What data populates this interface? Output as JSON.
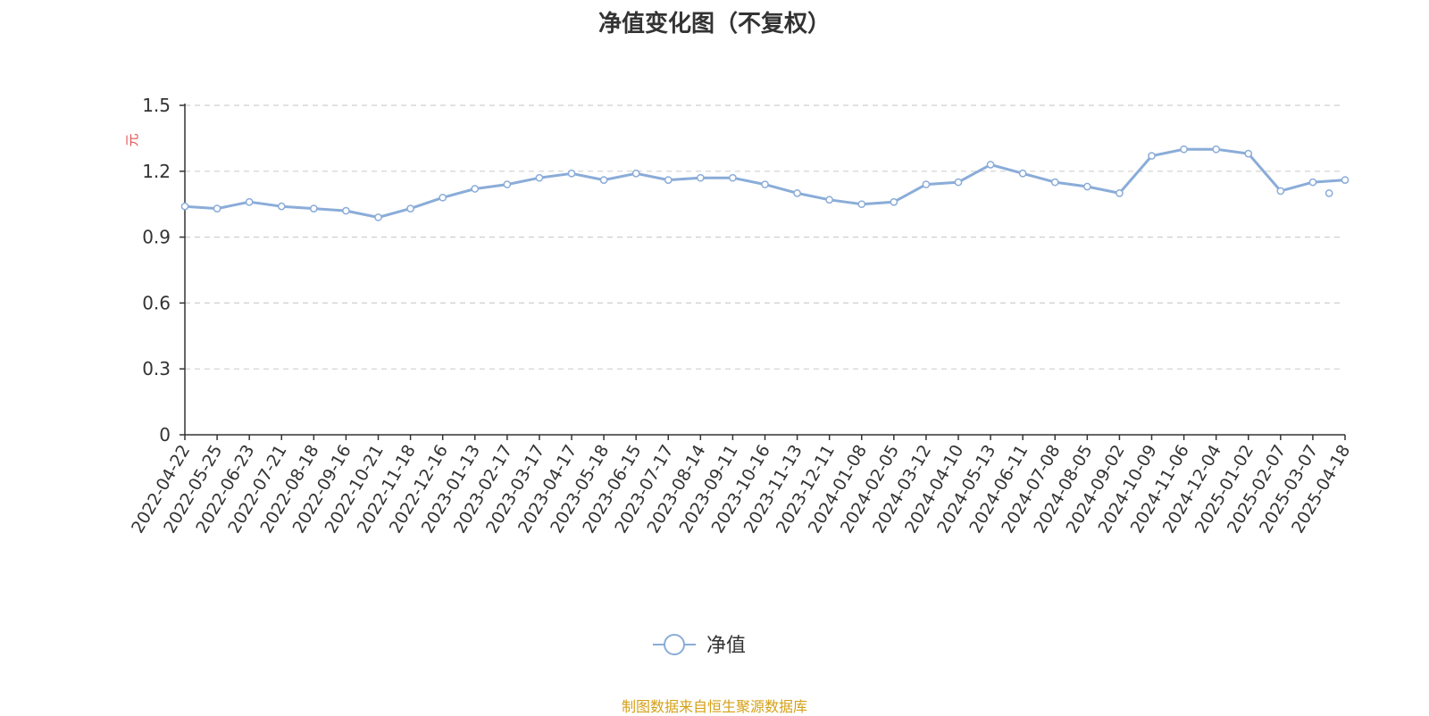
{
  "title": "净值变化图（不复权）",
  "source": "制图数据来自恒生聚源数据库",
  "colors": {
    "line": "#8aacd8",
    "source": "#d4a017",
    "unit": "#e84d4d"
  },
  "chart_data": {
    "type": "line",
    "title": "净值变化图（不复权）",
    "ylabel": "元",
    "ylim": [
      0,
      1.5
    ],
    "yticks": [
      "0",
      "0.3",
      "0.6",
      "0.9",
      "1.2",
      "1.5"
    ],
    "grid": true,
    "legend_position": "bottom",
    "categories": [
      "2022-04-22",
      "2022-05-25",
      "2022-06-23",
      "2022-07-21",
      "2022-08-18",
      "2022-09-16",
      "2022-10-21",
      "2022-11-18",
      "2022-12-16",
      "2023-01-13",
      "2023-02-17",
      "2023-03-17",
      "2023-04-17",
      "2023-05-18",
      "2023-06-15",
      "2023-07-17",
      "2023-08-14",
      "2023-09-11",
      "2023-10-16",
      "2023-11-13",
      "2023-12-11",
      "2024-01-08",
      "2024-02-05",
      "2024-03-12",
      "2024-04-10",
      "2024-05-13",
      "2024-06-11",
      "2024-07-08",
      "2024-08-05",
      "2024-09-02",
      "2024-10-09",
      "2024-11-06",
      "2024-12-04",
      "2025-01-02",
      "2025-02-07",
      "2025-03-07",
      "2025-04-18"
    ],
    "series": [
      {
        "name": "净值",
        "color": "#8aacd8",
        "values": [
          1.04,
          1.03,
          1.06,
          1.04,
          1.03,
          1.02,
          0.99,
          1.03,
          1.08,
          1.12,
          1.14,
          1.17,
          1.19,
          1.16,
          1.19,
          1.16,
          1.17,
          1.17,
          1.14,
          1.1,
          1.07,
          1.05,
          1.06,
          1.14,
          1.15,
          1.23,
          1.19,
          1.15,
          1.13,
          1.1,
          1.27,
          1.3,
          1.3,
          1.28,
          1.11,
          1.15,
          1.16
        ]
      }
    ],
    "marked_points": [
      {
        "x": "2025-04-03",
        "y": 1.1
      }
    ]
  }
}
